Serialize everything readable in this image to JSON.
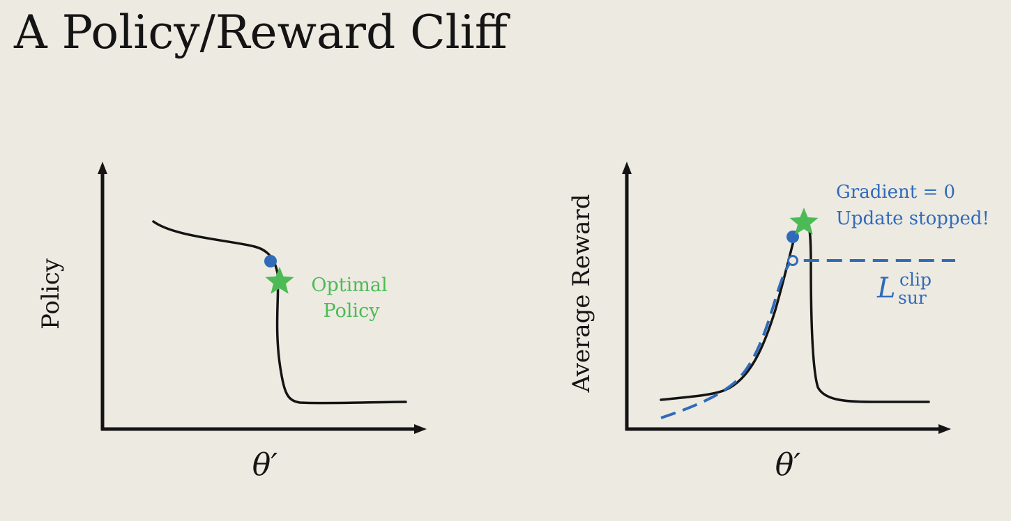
{
  "slide": {
    "title": "A Policy/Reward Cliff"
  },
  "colors": {
    "background": "#edeae2",
    "ink": "#141414",
    "blue": "#2f6bb8",
    "green": "#4cbb55"
  },
  "left_plot": {
    "ylabel": "Policy",
    "xlabel": "θ′",
    "star_label_line1": "Optimal",
    "star_label_line2": "Policy"
  },
  "right_plot": {
    "ylabel": "Average Reward",
    "xlabel": "θ′",
    "note_line1": "Gradient = 0",
    "note_line2": "Update stopped!",
    "surrogate_main": "L",
    "surrogate_sup": "clip",
    "surrogate_sub": "sur"
  }
}
